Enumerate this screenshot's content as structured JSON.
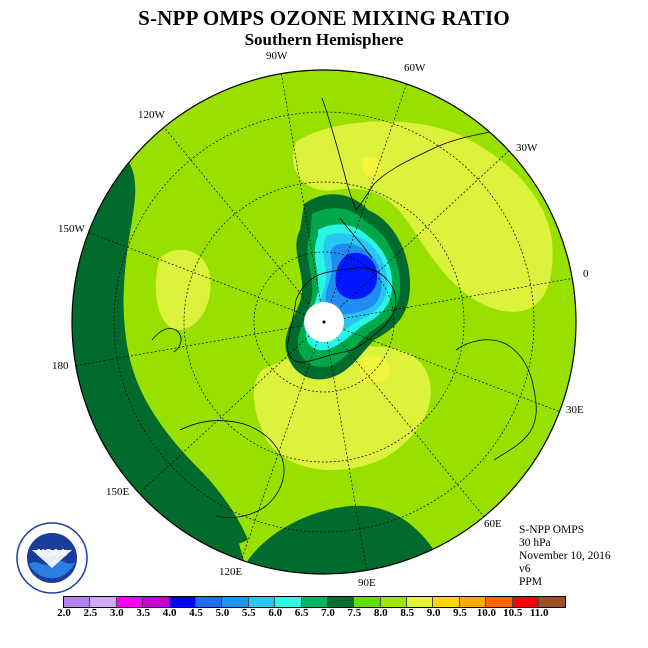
{
  "title": "S-NPP OMPS OZONE MIXING RATIO",
  "subtitle": "Southern Hemisphere",
  "longitude_labels": {
    "lon_90w": "90W",
    "lon_60w": "60W",
    "lon_30w": "30W",
    "lon_0": "0",
    "lon_30e": "30E",
    "lon_60e": "60E",
    "lon_90e": "90E",
    "lon_120e": "120E",
    "lon_150e": "150E",
    "lon_180": "180",
    "lon_150w": "150W",
    "lon_120w": "120W"
  },
  "info": {
    "instrument": "S-NPP OMPS",
    "level": "30 hPa",
    "date": "November 10, 2016",
    "version": "v6",
    "units": "PPM"
  },
  "logo_text": "NOAA",
  "colorbar": {
    "labels": [
      "2.0",
      "2.5",
      "3.0",
      "3.5",
      "4.0",
      "4.5",
      "5.0",
      "5.5",
      "6.0",
      "6.5",
      "7.0",
      "7.5",
      "8.0",
      "8.5",
      "9.0",
      "9.5",
      "10.0",
      "10.5",
      "11.0"
    ],
    "colors": [
      "#b482f0",
      "#d2a8f5",
      "#ff00ff",
      "#c800d2",
      "#0000ff",
      "#1e6ef0",
      "#1e96f0",
      "#28c8f0",
      "#28fae6",
      "#00b464",
      "#006e2d",
      "#64dc00",
      "#a0e600",
      "#e6f532",
      "#ffd700",
      "#ffaa00",
      "#ff6400",
      "#ff0000",
      "#a05028"
    ]
  },
  "map_colors": {
    "background": "#98e000",
    "band_dark": "#006b2c",
    "band_mid": "#00a84a",
    "yellow": "#dcf23c",
    "yellow_bright": "#f3f53a",
    "cyan": "#28f5e6",
    "blue_light": "#28c6f0",
    "blue_mid": "#1e8cf0",
    "blue_deep": "#0018ff"
  }
}
